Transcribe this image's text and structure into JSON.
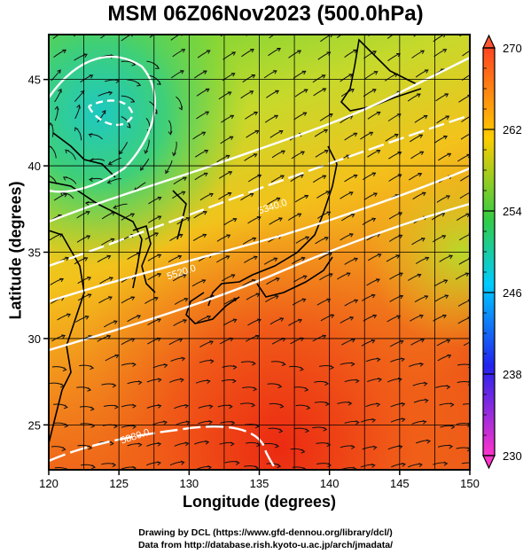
{
  "title": "MSM 06Z06Nov2023 (500.0hPa)",
  "xlabel": "Longitude (degrees)",
  "ylabel": "Latitude  (degrees)",
  "credits": [
    "Drawing by DCL (https://www.gfd-dennou.org/library/dcl/)",
    "Data from http://database.rish.kyoto-u.ac.jp/arch/jmadata/"
  ],
  "map": {
    "xlim": [
      120,
      150
    ],
    "ylim": [
      22.4,
      47.6
    ],
    "x_ticks": [
      120,
      125,
      130,
      135,
      140,
      145,
      150
    ],
    "y_ticks": [
      25,
      30,
      35,
      40,
      45
    ],
    "gridlines": true,
    "field": "temperature_K",
    "contour_labels": [
      {
        "text": "5520.0",
        "lon": 128.5,
        "lat": 33.4
      },
      {
        "text": "5340.0",
        "lon": 135.0,
        "lat": 37.2
      },
      {
        "text": "5880.0",
        "lon": 125.2,
        "lat": 23.9
      }
    ],
    "colors": {
      "warm": "#e8361c",
      "mid": "#f2c21a",
      "cool": "#5bd24a",
      "cold": "#33c3b0"
    }
  },
  "colorbar": {
    "min": 230,
    "max": 270,
    "tick_labels": [
      "270",
      "262",
      "254",
      "246",
      "238",
      "230"
    ],
    "stops": [
      "#ff33cc",
      "#0033ff",
      "#00ccff",
      "#33cc33",
      "#ffcc00",
      "#ff4422"
    ]
  }
}
